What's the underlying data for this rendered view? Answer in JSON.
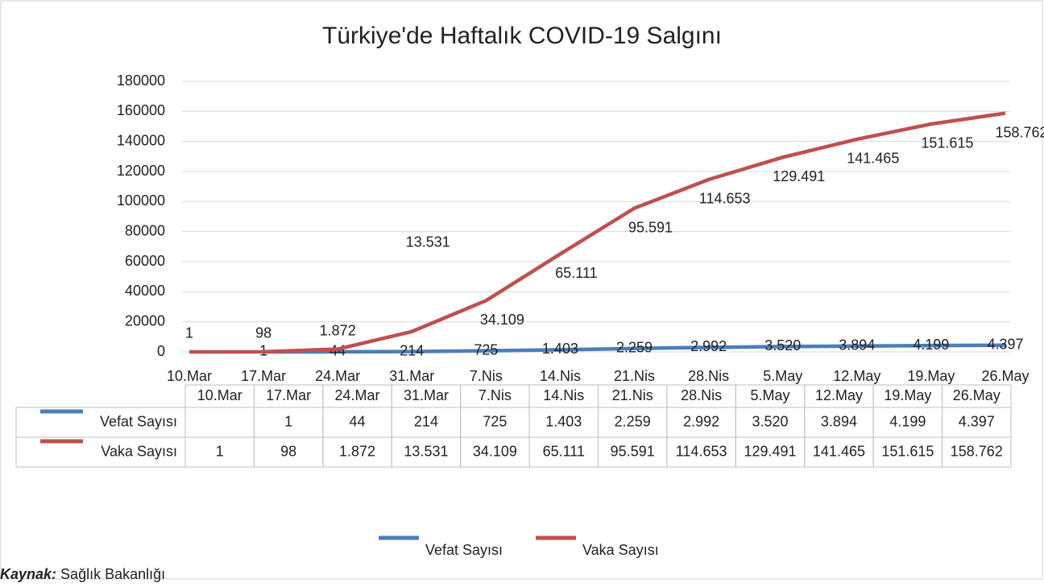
{
  "chart_data": {
    "type": "line",
    "title": "Türkiye'de Haftalık COVID-19 Salgını",
    "categories": [
      "10.Mar",
      "17.Mar",
      "24.Mar",
      "31.Mar",
      "7.Nis",
      "14.Nis",
      "21.Nis",
      "28.Nis",
      "5.May",
      "12.May",
      "19.May",
      "26.May"
    ],
    "series": [
      {
        "name": "Vefat Sayısı",
        "color": "#4a7ebb",
        "values": [
          null,
          1,
          44,
          214,
          725,
          1403,
          2259,
          2992,
          3520,
          3894,
          4199,
          4397
        ],
        "value_labels": [
          null,
          "1",
          "44",
          "214",
          "725",
          "1.403",
          "2.259",
          "2.992",
          "3.520",
          "3.894",
          "4.199",
          "4.397"
        ]
      },
      {
        "name": "Vaka Sayısı",
        "color": "#c0504d",
        "values": [
          1,
          98,
          1872,
          13531,
          34109,
          65111,
          95591,
          114653,
          129491,
          141465,
          151615,
          158762
        ],
        "value_labels": [
          "1",
          "98",
          "1.872",
          "13.531",
          "34.109",
          "65.111",
          "95.591",
          "114.653",
          "129.491",
          "141.465",
          "151.615",
          "158.762"
        ]
      }
    ],
    "ylim": [
      0,
      180000
    ],
    "yticks": [
      0,
      20000,
      40000,
      60000,
      80000,
      100000,
      120000,
      140000,
      160000,
      180000
    ],
    "grid": true,
    "legend": "bottom",
    "source_label": "Kaynak:",
    "source": "Sağlık Bakanlığı"
  }
}
